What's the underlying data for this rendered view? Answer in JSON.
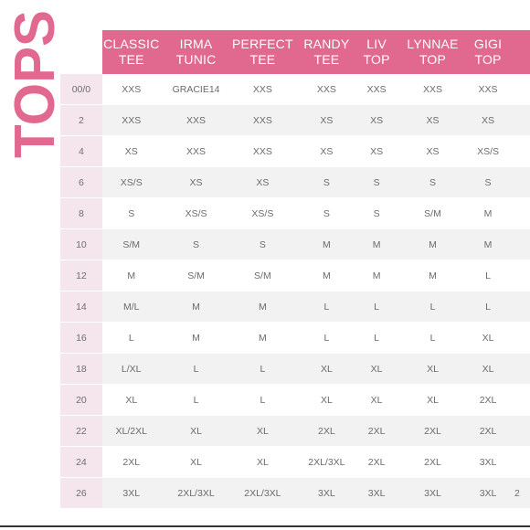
{
  "side_title": "TOPS",
  "colors": {
    "brand_pink": "#e1688f",
    "size_col": "#f4e6ec",
    "stripe": "#f2f2f2"
  },
  "columns": [
    "CLASSIC\nTEE",
    "IRMA\nTUNIC",
    "PERFECT\nTEE",
    "RANDY\nTEE",
    "LIV\nTOP",
    "LYNNAE\nTOP",
    "GIGI\nTOP",
    ""
  ],
  "rows": [
    {
      "size": "00/0",
      "cells": [
        "XXS",
        "GRACIE14",
        "XXS",
        "XXS",
        "XXS",
        "XXS",
        "XXS",
        ""
      ]
    },
    {
      "size": "2",
      "cells": [
        "XXS",
        "XXS",
        "XXS",
        "XS",
        "XS",
        "XS",
        "XS",
        ""
      ]
    },
    {
      "size": "4",
      "cells": [
        "XS",
        "XXS",
        "XXS",
        "XS",
        "XS",
        "XS",
        "XS/S",
        ""
      ]
    },
    {
      "size": "6",
      "cells": [
        "XS/S",
        "XS",
        "XS",
        "S",
        "S",
        "S",
        "S",
        ""
      ]
    },
    {
      "size": "8",
      "cells": [
        "S",
        "XS/S",
        "XS/S",
        "S",
        "S",
        "S/M",
        "M",
        ""
      ]
    },
    {
      "size": "10",
      "cells": [
        "S/M",
        "S",
        "S",
        "M",
        "M",
        "M",
        "M",
        ""
      ]
    },
    {
      "size": "12",
      "cells": [
        "M",
        "S/M",
        "S/M",
        "M",
        "M",
        "M",
        "L",
        ""
      ]
    },
    {
      "size": "14",
      "cells": [
        "M/L",
        "M",
        "M",
        "L",
        "L",
        "L",
        "L",
        ""
      ]
    },
    {
      "size": "16",
      "cells": [
        "L",
        "M",
        "M",
        "L",
        "L",
        "L",
        "XL",
        ""
      ]
    },
    {
      "size": "18",
      "cells": [
        "L/XL",
        "L",
        "L",
        "XL",
        "XL",
        "XL",
        "XL",
        ""
      ]
    },
    {
      "size": "20",
      "cells": [
        "XL",
        "L",
        "L",
        "XL",
        "XL",
        "XL",
        "2XL",
        ""
      ]
    },
    {
      "size": "22",
      "cells": [
        "XL/2XL",
        "XL",
        "XL",
        "2XL",
        "2XL",
        "2XL",
        "2XL",
        ""
      ]
    },
    {
      "size": "24",
      "cells": [
        "2XL",
        "XL",
        "XL",
        "2XL/3XL",
        "2XL",
        "2XL",
        "3XL",
        ""
      ]
    },
    {
      "size": "26",
      "cells": [
        "3XL",
        "2XL/3XL",
        "2XL/3XL",
        "3XL",
        "3XL",
        "3XL",
        "3XL",
        "2"
      ]
    }
  ]
}
